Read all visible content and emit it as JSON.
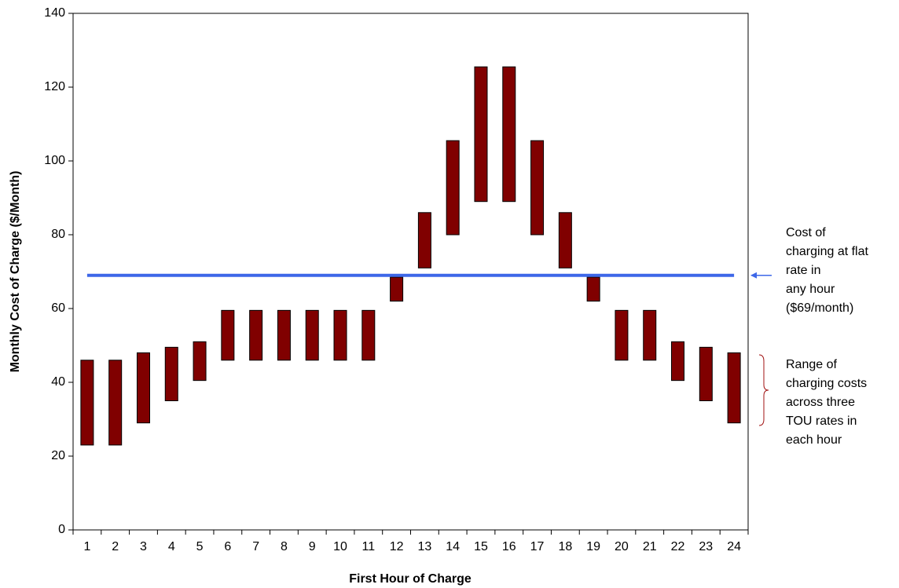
{
  "chart_data": {
    "type": "floating-bar",
    "x_label": "First Hour of Charge",
    "y_label": "Monthly Cost of Charge ($/Month)",
    "categories": [
      "1",
      "2",
      "3",
      "4",
      "5",
      "6",
      "7",
      "8",
      "9",
      "10",
      "11",
      "12",
      "13",
      "14",
      "15",
      "16",
      "17",
      "18",
      "19",
      "20",
      "21",
      "22",
      "23",
      "24"
    ],
    "low": [
      23,
      23,
      29,
      35,
      40.5,
      46,
      46,
      46,
      46,
      46,
      46,
      62,
      71,
      80,
      89,
      89,
      80,
      71,
      62,
      46,
      46,
      40.5,
      35,
      29
    ],
    "high": [
      46,
      46,
      48,
      49.5,
      51,
      59.5,
      59.5,
      59.5,
      59.5,
      59.5,
      59.5,
      68.5,
      86,
      105.5,
      125.5,
      125.5,
      105.5,
      86,
      68.5,
      59.5,
      59.5,
      51,
      49.5,
      48
    ],
    "color": "#800000",
    "ylim": [
      0,
      140
    ],
    "yticks": [
      0,
      20,
      40,
      60,
      80,
      100,
      120,
      140
    ],
    "reference_line": {
      "value": 69,
      "color": "#3d67e8"
    },
    "annotations": [
      {
        "lines": [
          "Cost of",
          "charging at flat",
          "rate in",
          "any hour",
          "($69/month)"
        ],
        "color": "#3d67e8"
      },
      {
        "lines": [
          "Range of",
          "charging costs",
          "across three",
          "TOU rates in",
          "each hour"
        ],
        "color": "#a01010"
      }
    ]
  }
}
